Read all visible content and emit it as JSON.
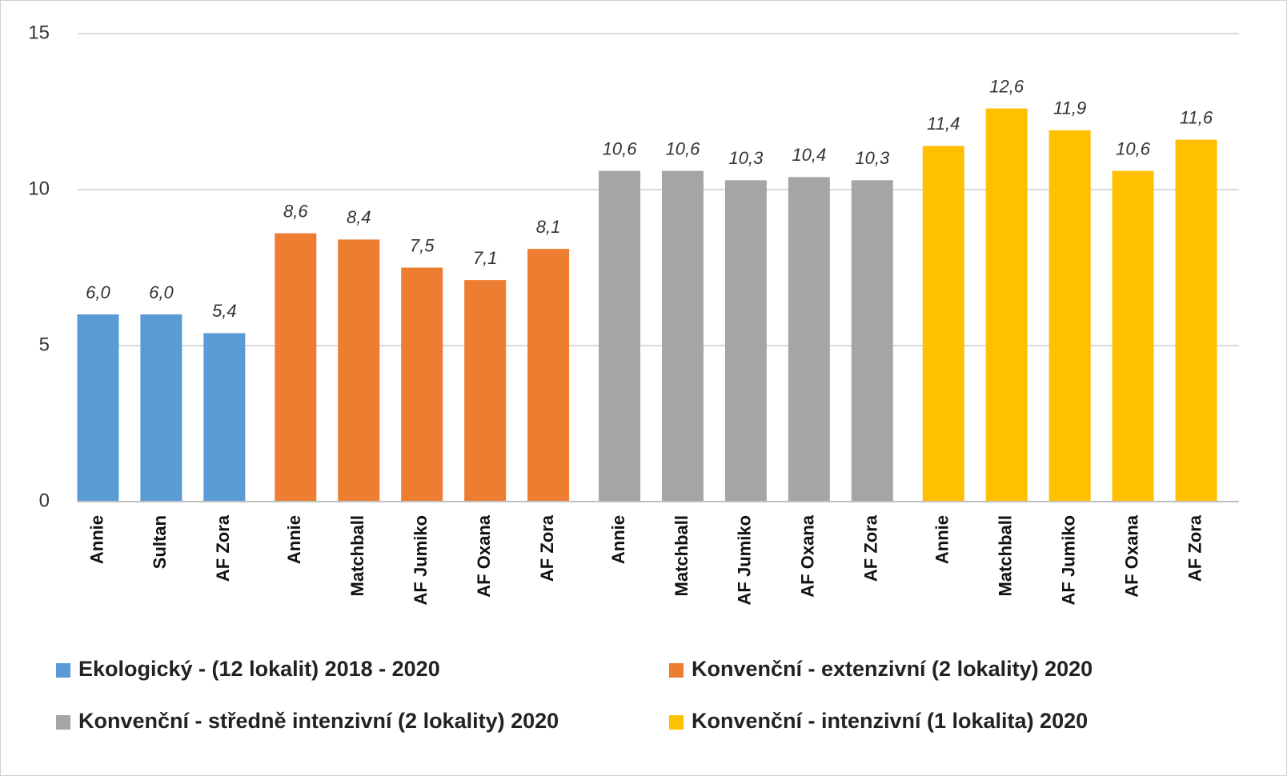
{
  "chart_data": {
    "type": "bar",
    "ylim": [
      0,
      15
    ],
    "yticks": [
      0,
      5,
      10,
      15
    ],
    "grid": true,
    "series": [
      {
        "name": "Ekologický - (12 lokalit) 2018 - 2020",
        "color": "#5b9bd5",
        "categories": [
          "Annie",
          "Sultan",
          "AF Zora"
        ],
        "values": [
          6.0,
          6.0,
          5.4
        ],
        "value_labels": [
          "6,0",
          "6,0",
          "5,4"
        ]
      },
      {
        "name": "Konvenční - extenzivní (2 lokality) 2020",
        "color": "#ed7d31",
        "categories": [
          "Annie",
          "Matchball",
          "AF Jumiko",
          "AF Oxana",
          "AF Zora"
        ],
        "values": [
          8.6,
          8.4,
          7.5,
          7.1,
          8.1
        ],
        "value_labels": [
          "8,6",
          "8,4",
          "7,5",
          "7,1",
          "8,1"
        ]
      },
      {
        "name": "Konvenční - středně intenzivní (2 lokality) 2020",
        "color": "#a5a5a5",
        "categories": [
          "Annie",
          "Matchball",
          "AF Jumiko",
          "AF Oxana",
          "AF Zora"
        ],
        "values": [
          10.6,
          10.6,
          10.3,
          10.4,
          10.3
        ],
        "value_labels": [
          "10,6",
          "10,6",
          "10,3",
          "10,4",
          "10,3"
        ]
      },
      {
        "name": "Konvenční - intenzivní (1 lokalita) 2020",
        "color": "#ffc000",
        "categories": [
          "Annie",
          "Matchball",
          "AF Jumiko",
          "AF Oxana",
          "AF Zora"
        ],
        "values": [
          11.4,
          12.6,
          11.9,
          10.6,
          11.6
        ],
        "value_labels": [
          "11,4",
          "12,6",
          "11,9",
          "10,6",
          "11,6"
        ]
      }
    ]
  }
}
